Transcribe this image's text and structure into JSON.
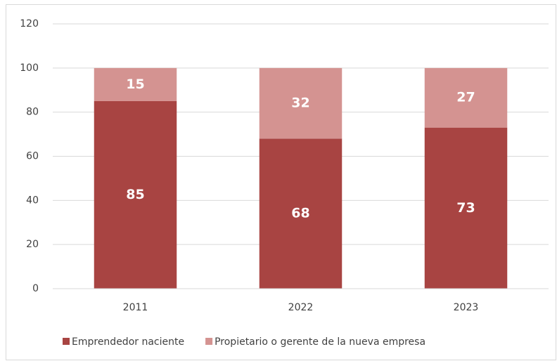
{
  "chart_data": {
    "type": "stacked_bar",
    "categories": [
      "2011",
      "2022",
      "2023"
    ],
    "series": [
      {
        "name": "Emprendedor naciente",
        "color": "#a84442",
        "values": [
          85,
          68,
          73
        ]
      },
      {
        "name": "Propietario o gerente de la nueva empresa",
        "color": "#d49391",
        "values": [
          15,
          32,
          27
        ]
      }
    ],
    "ylim": [
      0,
      120
    ],
    "yticks": [
      0,
      20,
      40,
      60,
      80,
      100,
      120
    ],
    "grid": true,
    "legend": "bottom"
  }
}
